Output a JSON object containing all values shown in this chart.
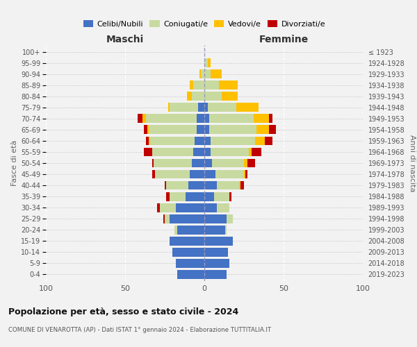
{
  "age_groups": [
    "0-4",
    "5-9",
    "10-14",
    "15-19",
    "20-24",
    "25-29",
    "30-34",
    "35-39",
    "40-44",
    "45-49",
    "50-54",
    "55-59",
    "60-64",
    "65-69",
    "70-74",
    "75-79",
    "80-84",
    "85-89",
    "90-94",
    "95-99",
    "100+"
  ],
  "birth_years": [
    "2019-2023",
    "2014-2018",
    "2009-2013",
    "2004-2008",
    "1999-2003",
    "1994-1998",
    "1989-1993",
    "1984-1988",
    "1979-1983",
    "1974-1978",
    "1969-1973",
    "1964-1968",
    "1959-1963",
    "1954-1958",
    "1949-1953",
    "1944-1948",
    "1939-1943",
    "1934-1938",
    "1929-1933",
    "1924-1928",
    "≤ 1923"
  ],
  "males": {
    "celibi": [
      17,
      18,
      20,
      22,
      17,
      22,
      18,
      12,
      10,
      9,
      8,
      7,
      6,
      5,
      5,
      4,
      0,
      0,
      0,
      0,
      0
    ],
    "coniugati": [
      0,
      0,
      0,
      0,
      2,
      3,
      10,
      10,
      14,
      22,
      24,
      26,
      28,
      30,
      32,
      18,
      8,
      7,
      2,
      0,
      0
    ],
    "vedovi": [
      0,
      0,
      0,
      0,
      0,
      0,
      0,
      0,
      0,
      0,
      0,
      0,
      1,
      1,
      2,
      1,
      3,
      2,
      1,
      0,
      0
    ],
    "divorziati": [
      0,
      0,
      0,
      0,
      0,
      1,
      2,
      2,
      1,
      2,
      1,
      5,
      2,
      2,
      3,
      0,
      0,
      0,
      0,
      0,
      0
    ]
  },
  "females": {
    "nubili": [
      14,
      16,
      15,
      18,
      13,
      14,
      8,
      6,
      8,
      7,
      5,
      4,
      4,
      3,
      3,
      2,
      0,
      0,
      0,
      0,
      0
    ],
    "coniugate": [
      0,
      0,
      0,
      0,
      1,
      4,
      8,
      10,
      14,
      18,
      20,
      24,
      28,
      30,
      28,
      18,
      11,
      9,
      4,
      2,
      0
    ],
    "vedove": [
      0,
      0,
      0,
      0,
      0,
      0,
      0,
      0,
      1,
      1,
      2,
      2,
      6,
      8,
      10,
      14,
      10,
      12,
      7,
      2,
      0
    ],
    "divorziate": [
      0,
      0,
      0,
      0,
      0,
      0,
      0,
      1,
      2,
      1,
      5,
      6,
      5,
      4,
      2,
      0,
      0,
      0,
      0,
      0,
      0
    ]
  },
  "colors": {
    "celibi": "#4472c4",
    "coniugati": "#c8daa0",
    "vedovi": "#ffc000",
    "divorziati": "#c00000"
  },
  "title_main": "Popolazione per età, sesso e stato civile - 2024",
  "title_sub": "COMUNE DI VENAROTTA (AP) - Dati ISTAT 1° gennaio 2024 - Elaborazione TUTTITALIA.IT",
  "xlabel_left": "Maschi",
  "xlabel_right": "Femmine",
  "ylabel_left": "Fasce di età",
  "ylabel_right": "Anni di nascita",
  "legend_labels": [
    "Celibi/Nubili",
    "Coniugati/e",
    "Vedovi/e",
    "Divorziati/e"
  ],
  "xlim": 100,
  "bg_color": "#f2f2f2"
}
